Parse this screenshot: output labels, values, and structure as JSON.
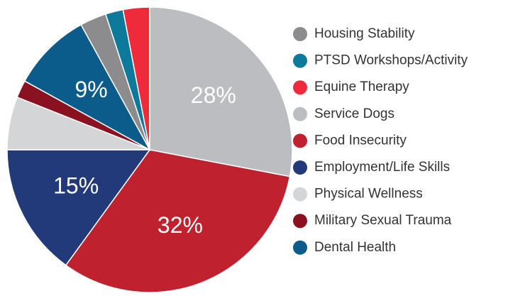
{
  "chart_data": {
    "type": "pie",
    "categories": [
      "Housing Stability",
      "PTSD Workshops/Activity",
      "Equine Therapy",
      "Service Dogs",
      "Food Insecurity",
      "Employment/Life Skills",
      "Physical Wellness",
      "Military Sexual Trauma",
      "Dental Health"
    ],
    "values": [
      3,
      2,
      3,
      28,
      32,
      15,
      6,
      2,
      9
    ],
    "value_labels": [
      null,
      null,
      null,
      "28%",
      "32%",
      "15%",
      null,
      null,
      "9%"
    ],
    "colors": [
      "#8c8c8e",
      "#0d7a9b",
      "#ee2a3b",
      "#bcbdc0",
      "#c0212f",
      "#233a7a",
      "#d4d5d7",
      "#8a1120",
      "#0b5b8b"
    ]
  }
}
